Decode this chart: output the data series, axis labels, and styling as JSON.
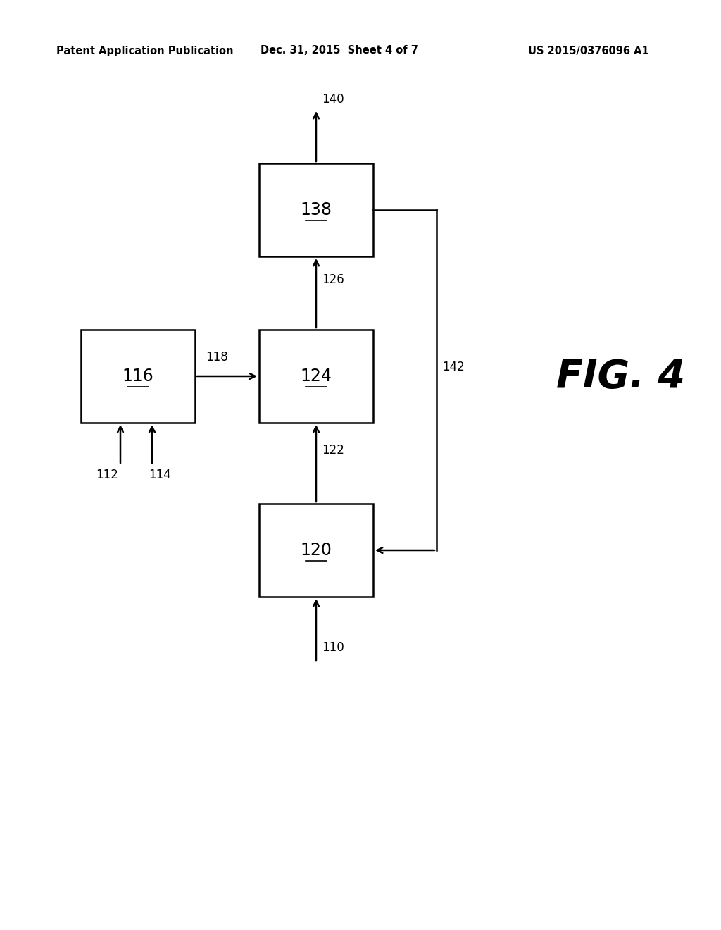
{
  "title_left": "Patent Application Publication",
  "title_center": "Dec. 31, 2015  Sheet 4 of 7",
  "title_right": "US 2015/0376096 A1",
  "fig_label": "FIG. 4",
  "background_color": "#ffffff",
  "text_color": "#000000",
  "line_color": "#000000",
  "header_fontsize": 10.5,
  "label_fontsize": 17,
  "ref_fontsize": 12,
  "fig_label_fontsize": 40,
  "lw": 1.8
}
